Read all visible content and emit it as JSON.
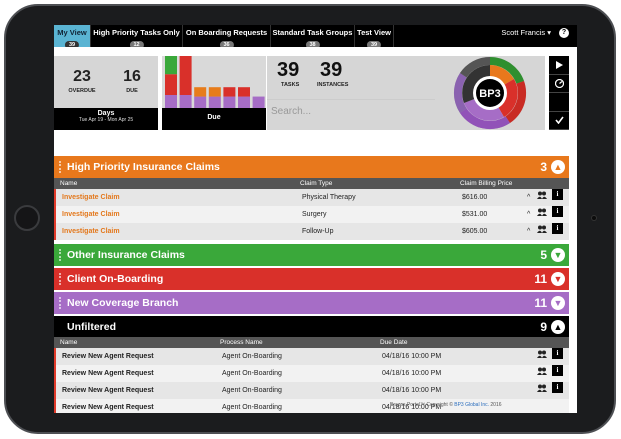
{
  "nav": {
    "tabs": [
      {
        "label": "My View",
        "badge": "39"
      },
      {
        "label": "High Priority Tasks Only",
        "badge": "12"
      },
      {
        "label": "On Boarding Requests",
        "badge": "36"
      },
      {
        "label": "Standard Task Groups",
        "badge": "38"
      },
      {
        "label": "Test View",
        "badge": "39"
      }
    ],
    "user": "Scott Francis",
    "help": "?"
  },
  "stats": {
    "overdue_value": "23",
    "overdue_label": "OVERDUE",
    "due_value": "16",
    "due_label": "DUE",
    "days_title": "Days",
    "days_range": "Tue Apr 19 - Mon Apr 25"
  },
  "due_chart": {
    "title": "Due",
    "colors": {
      "green": "#3aa83a",
      "red": "#d9302a",
      "orange": "#e77c1b",
      "purple": "#a66dc6"
    },
    "bars": [
      {
        "green": 0.35,
        "red": 0.4,
        "purple": 0.25
      },
      {
        "red": 0.75,
        "purple": 0.25
      },
      {
        "orange": 0.18,
        "purple": 0.22
      },
      {
        "orange": 0.18,
        "purple": 0.22
      },
      {
        "red": 0.18,
        "purple": 0.22
      },
      {
        "red": 0.18,
        "purple": 0.22
      },
      {
        "purple": 0.22
      }
    ]
  },
  "counts": {
    "tasks_value": "39",
    "tasks_label": "TASKS",
    "instances_value": "39",
    "instances_label": "INSTANCES",
    "search_placeholder": "Search..."
  },
  "sunburst": {
    "logo": "BP3"
  },
  "groups": {
    "high": {
      "title": "High Priority Insurance Claims",
      "count": "3",
      "color": "#e8781c"
    },
    "other": {
      "title": "Other Insurance Claims",
      "count": "5",
      "color": "#3aa83a"
    },
    "client": {
      "title": "Client On-Boarding",
      "count": "11",
      "color": "#d9302a"
    },
    "coverage": {
      "title": "New Coverage Branch",
      "count": "11",
      "color": "#a66dc6"
    },
    "unfiltered": {
      "title": "Unfiltered",
      "count": "9",
      "color": "#000000"
    }
  },
  "high_table": {
    "col_name": "Name",
    "col_type": "Claim Type",
    "col_price": "Claim Billing Price",
    "rows": [
      {
        "name": "Investigate Claim",
        "type": "Physical Therapy",
        "price": "$616.00"
      },
      {
        "name": "Investigate Claim",
        "type": "Surgery",
        "price": "$531.00"
      },
      {
        "name": "Investigate Claim",
        "type": "Follow-Up",
        "price": "$605.00"
      }
    ]
  },
  "unf_table": {
    "col_name": "Name",
    "col_process": "Process Name",
    "col_due": "Due Date",
    "rows": [
      {
        "name": "Review New Agent Request",
        "process": "Agent On-Boarding",
        "due": "04/18/16 10:00 PM"
      },
      {
        "name": "Review New Agent Request",
        "process": "Agent On-Boarding",
        "due": "04/18/16 10:00 PM"
      },
      {
        "name": "Review New Agent Request",
        "process": "Agent On-Boarding",
        "due": "04/18/16 10:00 PM"
      },
      {
        "name": "Review New Agent Request",
        "process": "Agent On-Boarding",
        "due": "04/18/16 10:00 PM"
      }
    ]
  },
  "footer": {
    "product": "Brazos Portal™ Copyright ©",
    "company": "BP3 Global Inc.",
    "year": "2016"
  }
}
